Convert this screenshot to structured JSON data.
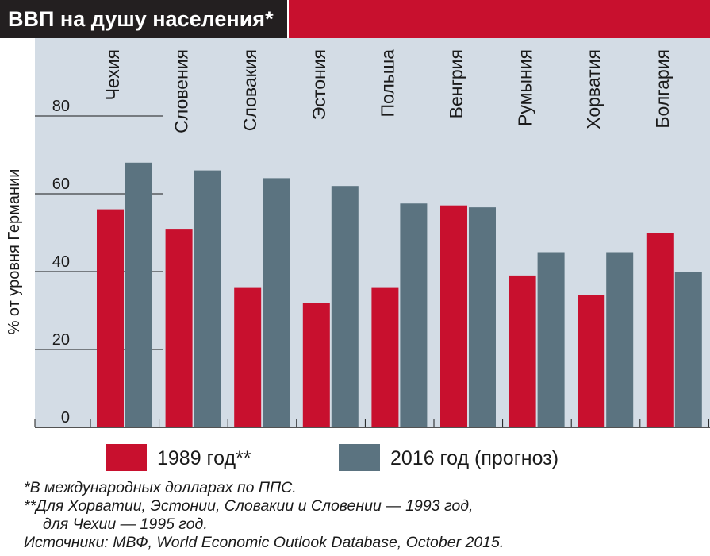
{
  "header": {
    "title": "ВВП на душу населения*"
  },
  "chart_data": {
    "type": "bar",
    "title": "ВВП на душу населения*",
    "ylabel": "% от уровня Германии",
    "xlabel": "",
    "ylim": [
      0,
      80
    ],
    "yticks": [
      0,
      20,
      40,
      60,
      80
    ],
    "grid": false,
    "categories": [
      "Чехия",
      "Словения",
      "Словакия",
      "Эстония",
      "Польша",
      "Венгрия",
      "Румыния",
      "Хорватия",
      "Болгария"
    ],
    "series": [
      {
        "name": "1989 год**",
        "color": "#c8102e",
        "values": [
          56,
          51,
          36,
          32,
          36,
          57,
          39,
          34,
          50
        ]
      },
      {
        "name": "2016 год (прогноз)",
        "color": "#5b7380",
        "values": [
          68,
          66,
          64,
          62,
          57.5,
          56.5,
          45,
          45,
          40
        ]
      }
    ],
    "legend_position": "bottom"
  },
  "colors": {
    "plot_bg": "#d3dce5",
    "accent": "#c8102e",
    "header_dark": "#231f20"
  },
  "footnotes": [
    "*В международных долларах по ППС.",
    "**Для Хорватии, Эстонии, Словакии и Словении — 1993 год,",
    "для Чехии — 1995 год.",
    "Источники: МВФ, World Economic Outlook Database, October 2015."
  ]
}
